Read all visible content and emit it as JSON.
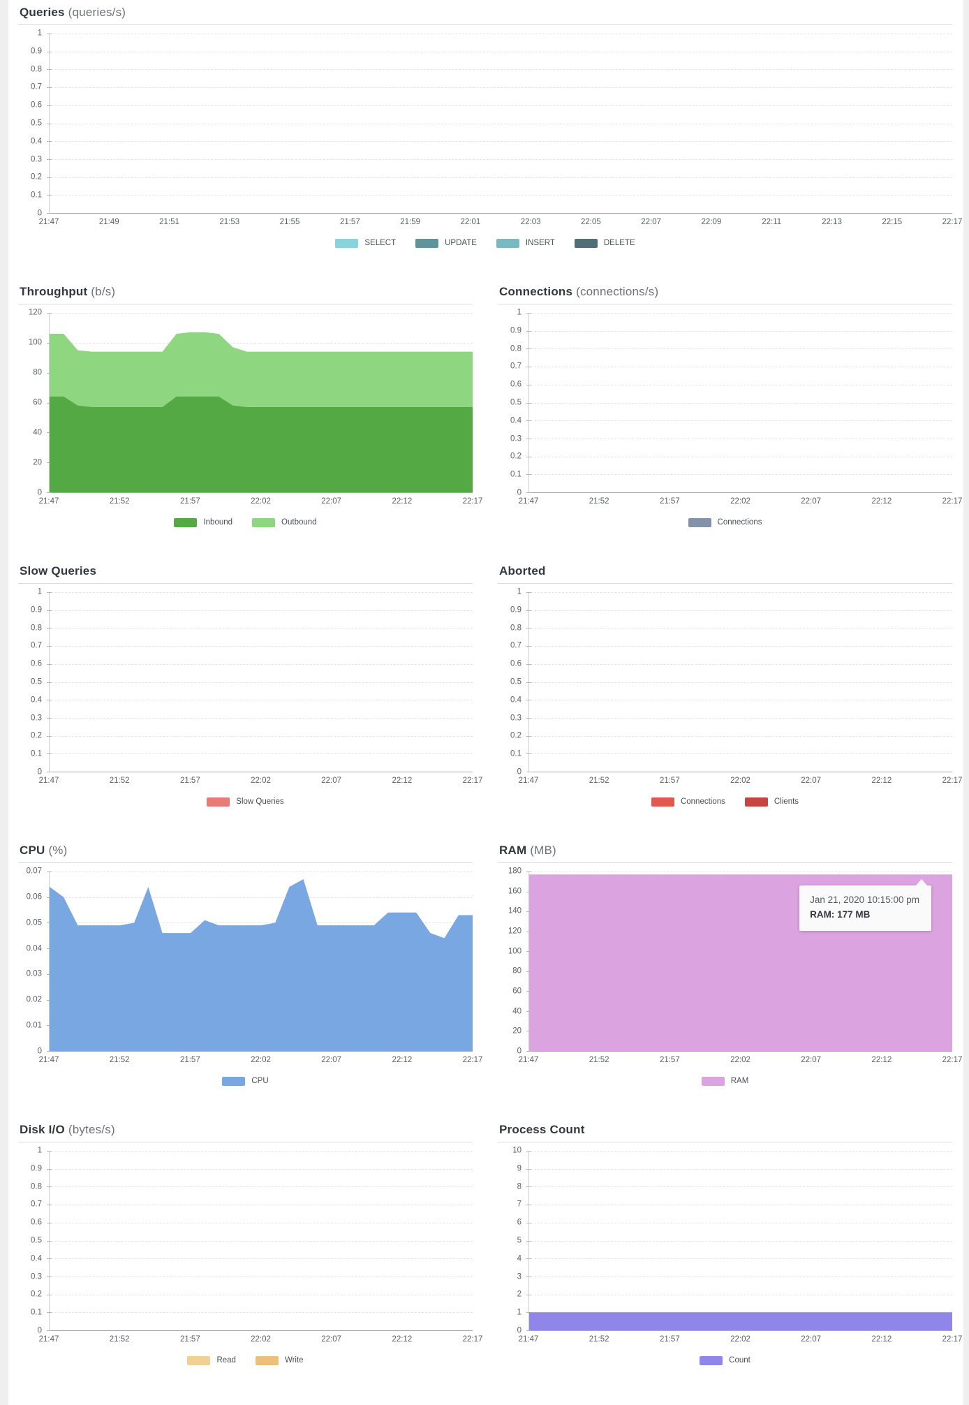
{
  "page": {
    "background": "#efefef",
    "card_background": "#ffffff"
  },
  "colors": {
    "grid": "#e4e4e4",
    "axis_left": "#cfcfcf",
    "axis_bottom": "#a9a9a9",
    "tick_label": "#5a5f63",
    "title": "#33383d",
    "unit": "#6e7277"
  },
  "chart_data": "see charts[] — full dashboard data",
  "charts": [
    {
      "id": "queries",
      "title": "Queries",
      "unit": "(queries/s)",
      "type": "area",
      "layout": "full",
      "y_max": 1,
      "y_ticks": [
        "1",
        "0.9",
        "0.8",
        "0.7",
        "0.6",
        "0.5",
        "0.4",
        "0.3",
        "0.2",
        "0.1",
        "0"
      ],
      "x_ticks": [
        "21:47",
        "21:49",
        "21:51",
        "21:53",
        "21:55",
        "21:57",
        "21:59",
        "22:01",
        "22:03",
        "22:05",
        "22:07",
        "22:09",
        "22:11",
        "22:13",
        "22:15",
        "22:17"
      ],
      "series": [
        {
          "name": "SELECT",
          "color": "#8ad3dd",
          "values": []
        },
        {
          "name": "UPDATE",
          "color": "#60949b",
          "values": []
        },
        {
          "name": "INSERT",
          "color": "#7bb9c2",
          "values": []
        },
        {
          "name": "DELETE",
          "color": "#4f6e76",
          "values": []
        }
      ],
      "legend": [
        {
          "label": "SELECT",
          "color": "#8ad3dd"
        },
        {
          "label": "UPDATE",
          "color": "#60949b"
        },
        {
          "label": "INSERT",
          "color": "#7bb9c2"
        },
        {
          "label": "DELETE",
          "color": "#4f6e76"
        }
      ]
    },
    {
      "id": "throughput",
      "title": "Throughput",
      "unit": "(b/s)",
      "type": "area",
      "layout": "half-left",
      "y_max": 120,
      "y_ticks": [
        "120",
        "100",
        "80",
        "60",
        "40",
        "20",
        "0"
      ],
      "x_ticks": [
        "21:47",
        "21:52",
        "21:57",
        "22:02",
        "22:07",
        "22:12",
        "22:17"
      ],
      "series": [
        {
          "name": "Outbound",
          "color": "#8fd680",
          "values": [
            106,
            106,
            95,
            94,
            94,
            94,
            94,
            94,
            94,
            106,
            107,
            107,
            106,
            97,
            94,
            94,
            94,
            94,
            94,
            94,
            94,
            94,
            94,
            94,
            94,
            94,
            94,
            94,
            94,
            94,
            94
          ]
        },
        {
          "name": "Inbound",
          "color": "#55a944",
          "values": [
            64,
            64,
            58,
            57,
            57,
            57,
            57,
            57,
            57,
            64,
            64,
            64,
            64,
            58,
            57,
            57,
            57,
            57,
            57,
            57,
            57,
            57,
            57,
            57,
            57,
            57,
            57,
            57,
            57,
            57,
            57
          ]
        }
      ],
      "legend": [
        {
          "label": "Inbound",
          "color": "#55a944"
        },
        {
          "label": "Outbound",
          "color": "#8fd680"
        }
      ]
    },
    {
      "id": "connections",
      "title": "Connections",
      "unit": "(connections/s)",
      "type": "area",
      "layout": "half-right",
      "y_max": 1,
      "y_ticks": [
        "1",
        "0.9",
        "0.8",
        "0.7",
        "0.6",
        "0.5",
        "0.4",
        "0.3",
        "0.2",
        "0.1",
        "0"
      ],
      "x_ticks": [
        "21:47",
        "21:52",
        "21:57",
        "22:02",
        "22:07",
        "22:12",
        "22:17"
      ],
      "series": [
        {
          "name": "Connections",
          "color": "#8492a9",
          "values": []
        }
      ],
      "legend": [
        {
          "label": "Connections",
          "color": "#8492a9"
        }
      ]
    },
    {
      "id": "slow-queries",
      "title": "Slow Queries",
      "unit": "",
      "type": "area",
      "layout": "half-left",
      "y_max": 1,
      "y_ticks": [
        "1",
        "0.9",
        "0.8",
        "0.7",
        "0.6",
        "0.5",
        "0.4",
        "0.3",
        "0.2",
        "0.1",
        "0"
      ],
      "x_ticks": [
        "21:47",
        "21:52",
        "21:57",
        "22:02",
        "22:07",
        "22:12",
        "22:17"
      ],
      "series": [
        {
          "name": "Slow Queries",
          "color": "#e87b76",
          "values": []
        }
      ],
      "legend": [
        {
          "label": "Slow Queries",
          "color": "#e87b76"
        }
      ]
    },
    {
      "id": "aborted",
      "title": "Aborted",
      "unit": "",
      "type": "area",
      "layout": "half-right",
      "y_max": 1,
      "y_ticks": [
        "1",
        "0.9",
        "0.8",
        "0.7",
        "0.6",
        "0.5",
        "0.4",
        "0.3",
        "0.2",
        "0.1",
        "0"
      ],
      "x_ticks": [
        "21:47",
        "21:52",
        "21:57",
        "22:02",
        "22:07",
        "22:12",
        "22:17"
      ],
      "series": [
        {
          "name": "Connections",
          "color": "#e2574e",
          "values": []
        },
        {
          "name": "Clients",
          "color": "#c7453e",
          "values": []
        }
      ],
      "legend": [
        {
          "label": "Connections",
          "color": "#e2574e"
        },
        {
          "label": "Clients",
          "color": "#c7453e"
        }
      ]
    },
    {
      "id": "cpu",
      "title": "CPU",
      "unit": "(%)",
      "type": "area",
      "layout": "half-left",
      "y_max": 0.07,
      "y_ticks": [
        "0.07",
        "0.06",
        "0.05",
        "0.04",
        "0.03",
        "0.02",
        "0.01",
        "0"
      ],
      "x_ticks": [
        "21:47",
        "21:52",
        "21:57",
        "22:02",
        "22:07",
        "22:12",
        "22:17"
      ],
      "series": [
        {
          "name": "CPU",
          "color": "#79a7e2",
          "values": [
            0.064,
            0.06,
            0.049,
            0.049,
            0.049,
            0.049,
            0.05,
            0.064,
            0.046,
            0.046,
            0.046,
            0.051,
            0.049,
            0.049,
            0.049,
            0.049,
            0.05,
            0.064,
            0.067,
            0.049,
            0.049,
            0.049,
            0.049,
            0.049,
            0.054,
            0.054,
            0.054,
            0.046,
            0.044,
            0.053,
            0.053
          ]
        }
      ],
      "legend": [
        {
          "label": "CPU",
          "color": "#79a7e2"
        }
      ]
    },
    {
      "id": "ram",
      "title": "RAM",
      "unit": "(MB)",
      "type": "area",
      "layout": "half-right",
      "y_max": 180,
      "y_ticks": [
        "180",
        "160",
        "140",
        "120",
        "100",
        "80",
        "60",
        "40",
        "20",
        "0"
      ],
      "x_ticks": [
        "21:47",
        "21:52",
        "21:57",
        "22:02",
        "22:07",
        "22:12",
        "22:17"
      ],
      "series": [
        {
          "name": "RAM",
          "color": "#dba4e0",
          "values": [
            177,
            177,
            177,
            177,
            177,
            177,
            177,
            177,
            177,
            177,
            177,
            177,
            177,
            177,
            177,
            177,
            177,
            177,
            177,
            177,
            177,
            177,
            177,
            177,
            177,
            177,
            177,
            177,
            177,
            177,
            177
          ]
        }
      ],
      "legend": [
        {
          "label": "RAM",
          "color": "#dba4e0"
        }
      ],
      "tooltip": {
        "line1": "Jan 21, 2020 10:15:00 pm",
        "line2": "RAM: 177 MB"
      }
    },
    {
      "id": "disk-io",
      "title": "Disk I/O",
      "unit": "(bytes/s)",
      "type": "area",
      "layout": "half-left",
      "y_max": 1,
      "y_ticks": [
        "1",
        "0.9",
        "0.8",
        "0.7",
        "0.6",
        "0.5",
        "0.4",
        "0.3",
        "0.2",
        "0.1",
        "0"
      ],
      "x_ticks": [
        "21:47",
        "21:52",
        "21:57",
        "22:02",
        "22:07",
        "22:12",
        "22:17"
      ],
      "series": [
        {
          "name": "Read",
          "color": "#f0d095",
          "values": []
        },
        {
          "name": "Write",
          "color": "#ecc07a",
          "values": []
        }
      ],
      "legend": [
        {
          "label": "Read",
          "color": "#f0d095"
        },
        {
          "label": "Write",
          "color": "#ecc07a"
        }
      ]
    },
    {
      "id": "process-count",
      "title": "Process Count",
      "unit": "",
      "type": "area",
      "layout": "half-right",
      "y_max": 10,
      "y_ticks": [
        "10",
        "9",
        "8",
        "7",
        "6",
        "5",
        "4",
        "3",
        "2",
        "1",
        "0"
      ],
      "x_ticks": [
        "21:47",
        "21:52",
        "21:57",
        "22:02",
        "22:07",
        "22:12",
        "22:17"
      ],
      "series": [
        {
          "name": "Count",
          "color": "#9086e9",
          "values": [
            1,
            1,
            1,
            1,
            1,
            1,
            1,
            1,
            1,
            1,
            1,
            1,
            1,
            1,
            1,
            1,
            1,
            1,
            1,
            1,
            1,
            1,
            1,
            1,
            1,
            1,
            1,
            1,
            1,
            1,
            1
          ]
        }
      ],
      "legend": [
        {
          "label": "Count",
          "color": "#9086e9"
        }
      ]
    }
  ]
}
